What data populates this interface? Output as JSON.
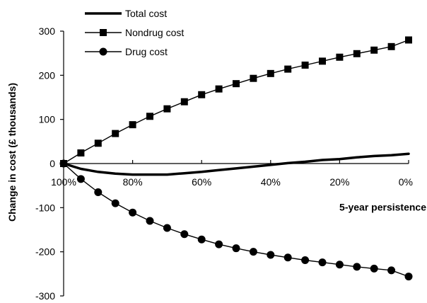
{
  "chart_data": {
    "type": "line",
    "xlabel": "5-year persistence",
    "ylabel": "Change in cost (£ thousands)",
    "x_reversed": true,
    "xlim": [
      0,
      100
    ],
    "ylim": [
      -300,
      300
    ],
    "x_ticks": [
      100,
      80,
      60,
      40,
      20,
      0
    ],
    "x_tick_labels": [
      "100%",
      "80%",
      "60%",
      "40%",
      "20%",
      "0%"
    ],
    "y_ticks": [
      300,
      200,
      100,
      0,
      -100,
      -200,
      -300
    ],
    "y_tick_labels": [
      "300",
      "200",
      "100",
      "0",
      "-100",
      "-200",
      "-300"
    ],
    "legend_position": "top-left",
    "grid": false,
    "x": [
      100,
      95,
      90,
      85,
      80,
      75,
      70,
      65,
      60,
      55,
      50,
      45,
      40,
      35,
      30,
      25,
      20,
      15,
      10,
      5,
      0
    ],
    "series": [
      {
        "name": "Total cost",
        "marker": "none",
        "line_width": "thick",
        "values": [
          0,
          -12,
          -19,
          -23,
          -25,
          -25,
          -25,
          -22,
          -19,
          -15,
          -11,
          -7,
          -3,
          1,
          4,
          8,
          10,
          14,
          17,
          19,
          22
        ]
      },
      {
        "name": "Nondrug cost",
        "marker": "square",
        "line_width": "thin",
        "values": [
          0,
          24,
          46,
          68,
          88,
          107,
          124,
          140,
          156,
          169,
          181,
          193,
          204,
          214,
          223,
          232,
          241,
          249,
          257,
          265,
          280
        ]
      },
      {
        "name": "Drug cost",
        "marker": "circle",
        "line_width": "thin",
        "values": [
          0,
          -35,
          -65,
          -90,
          -111,
          -130,
          -146,
          -160,
          -172,
          -183,
          -192,
          -200,
          -207,
          -213,
          -219,
          -224,
          -229,
          -234,
          -238,
          -242,
          -256
        ]
      }
    ]
  }
}
